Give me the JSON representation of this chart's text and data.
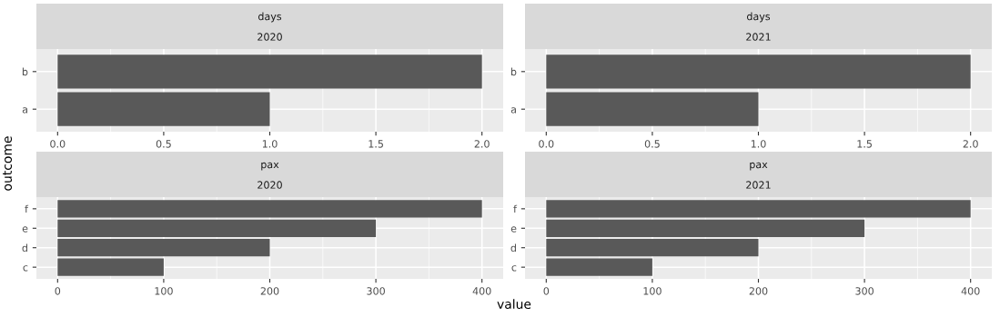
{
  "chart_data": [
    {
      "type": "bar",
      "orientation": "horizontal",
      "title": "days",
      "subtitle": "2020",
      "ylabel": "outcome",
      "categories": [
        "b",
        "a"
      ],
      "values": [
        2,
        1
      ],
      "color": "#595959",
      "xlim": [
        -0.1,
        2.1
      ],
      "xticks": [
        {
          "value": 0,
          "label": "0.0"
        },
        0.5,
        {
          "value": 1,
          "label": "1.0"
        },
        1.5,
        {
          "value": 2,
          "label": "2.0"
        }
      ],
      "grid": true,
      "legend": false
    },
    {
      "type": "bar",
      "orientation": "horizontal",
      "title": "days",
      "subtitle": "2021",
      "categories": [
        "b",
        "a"
      ],
      "values": [
        2,
        1
      ],
      "color": "#595959",
      "xlim": [
        -0.1,
        2.1
      ],
      "xticks": [
        {
          "value": 0,
          "label": "0.0"
        },
        0.5,
        {
          "value": 1,
          "label": "1.0"
        },
        1.5,
        {
          "value": 2,
          "label": "2.0"
        }
      ],
      "grid": true,
      "legend": false
    },
    {
      "type": "bar",
      "orientation": "horizontal",
      "title": "pax",
      "subtitle": "2020",
      "xlabel": "value",
      "categories": [
        "f",
        "e",
        "d",
        "c"
      ],
      "values": [
        400,
        300,
        200,
        100
      ],
      "color": "#595959",
      "xlim": [
        -20,
        420
      ],
      "xticks": [
        0,
        100,
        200,
        300,
        400
      ],
      "grid": true,
      "legend": false
    },
    {
      "type": "bar",
      "orientation": "horizontal",
      "title": "pax",
      "subtitle": "2021",
      "categories": [
        "f",
        "e",
        "d",
        "c"
      ],
      "values": [
        400,
        300,
        200,
        100
      ],
      "color": "#595959",
      "xlim": [
        -20,
        420
      ],
      "xticks": [
        0,
        100,
        200,
        300,
        400
      ],
      "grid": true,
      "legend": false
    }
  ]
}
